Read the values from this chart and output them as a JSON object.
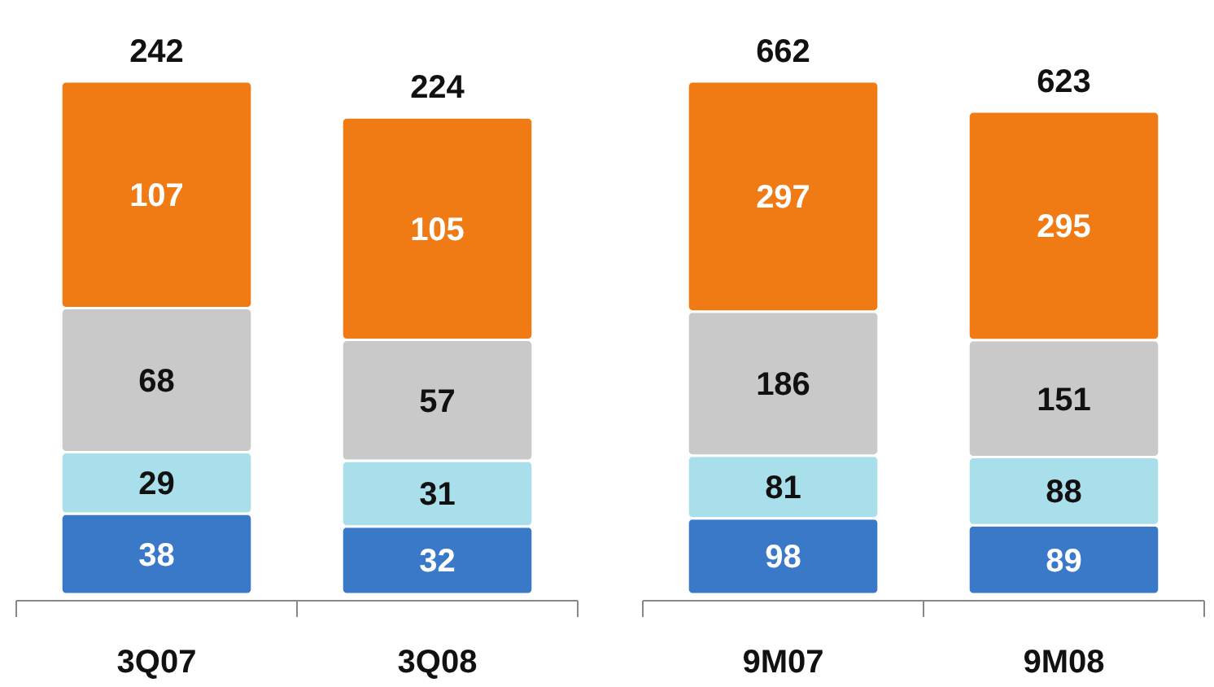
{
  "chart_data": [
    {
      "type": "bar",
      "stacked": true,
      "data_labels": true,
      "categories": [
        "3Q07",
        "3Q08"
      ],
      "series": [
        {
          "color": "#3a78c8",
          "values": [
            38,
            32
          ]
        },
        {
          "color": "#a8dfea",
          "values": [
            29,
            31
          ]
        },
        {
          "color": "#c9c9c9",
          "values": [
            68,
            57
          ]
        },
        {
          "color": "#f07a14",
          "values": [
            107,
            105
          ]
        }
      ],
      "totals": [
        "242",
        "224"
      ]
    },
    {
      "type": "bar",
      "stacked": true,
      "data_labels": true,
      "categories": [
        "9M07",
        "9M08"
      ],
      "series": [
        {
          "color": "#3a78c8",
          "values": [
            98,
            89
          ]
        },
        {
          "color": "#a8dfea",
          "values": [
            81,
            88
          ]
        },
        {
          "color": "#c9c9c9",
          "values": [
            186,
            151
          ]
        },
        {
          "color": "#f07a14",
          "values": [
            297,
            295
          ]
        }
      ],
      "totals": [
        "662",
        "623"
      ]
    }
  ]
}
